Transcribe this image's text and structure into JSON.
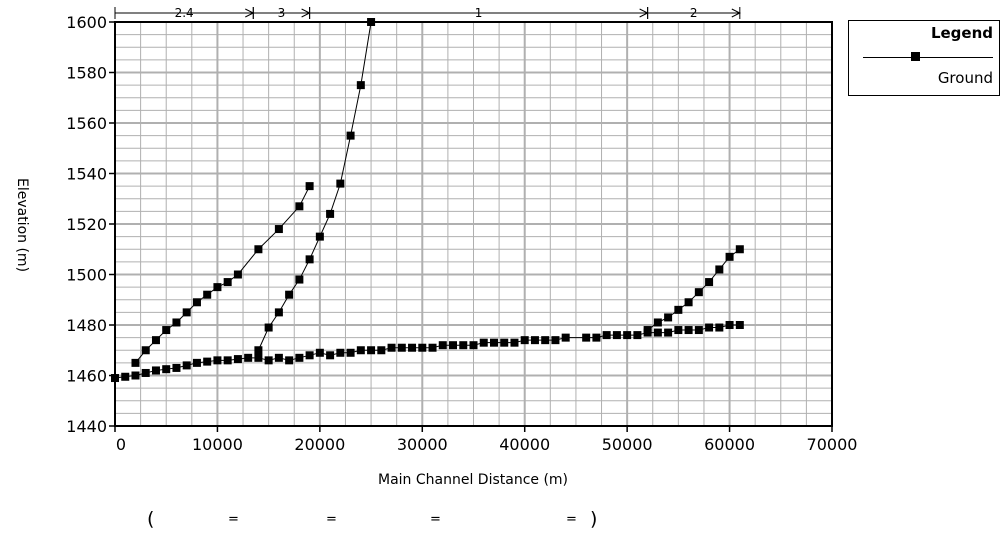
{
  "chart_data": {
    "type": "line",
    "title": "",
    "xlabel": "Main Channel Distance (m)",
    "ylabel": "Elevation (m)",
    "xlim": [
      0,
      70000
    ],
    "ylim": [
      1440,
      1600
    ],
    "x_ticks": [
      "0",
      "10000",
      "20000",
      "30000",
      "40000",
      "50000",
      "60000",
      "70000"
    ],
    "y_ticks": [
      "1440",
      "1460",
      "1480",
      "1500",
      "1520",
      "1540",
      "1560",
      "1580",
      "1600"
    ],
    "grid": true,
    "legend_position": "top-right",
    "series": [
      {
        "name": "Ground",
        "reaches": [
          {
            "x": [
              0,
              1000,
              2000,
              3000,
              4000,
              5000,
              6000,
              7000,
              8000,
              9000,
              10000,
              11000,
              12000,
              13000,
              14000,
              15000,
              16000,
              17000,
              18000,
              19000,
              20000,
              21000,
              22000,
              23000,
              24000,
              25000,
              26000,
              27000,
              28000,
              29000,
              30000,
              31000,
              32000,
              33000,
              34000,
              35000,
              36000,
              37000,
              38000,
              39000,
              40000,
              41000,
              42000,
              43000,
              44000,
              46000,
              47000,
              48000,
              49000,
              50000,
              51000,
              52000,
              53000,
              54000,
              55000,
              56000,
              57000,
              58000,
              59000,
              60000,
              61000
            ],
            "y": [
              1459,
              1459.5,
              1460,
              1461,
              1462,
              1462.5,
              1463,
              1464,
              1465,
              1465.5,
              1466,
              1466,
              1466.5,
              1467,
              1467,
              1466,
              1467,
              1466,
              1467,
              1468,
              1469,
              1468,
              1469,
              1469,
              1470,
              1470,
              1470,
              1471,
              1471,
              1471,
              1471,
              1471,
              1472,
              1472,
              1472,
              1472,
              1473,
              1473,
              1473,
              1473,
              1474,
              1474,
              1474,
              1474,
              1475,
              1475,
              1475,
              1476,
              1476,
              1476,
              1476,
              1477,
              1477,
              1477,
              1478,
              1478,
              1478,
              1479,
              1479,
              1480,
              1480
            ]
          },
          {
            "x": [
              2000,
              3000,
              4000,
              5000,
              6000,
              7000,
              8000,
              9000,
              10000,
              11000,
              12000,
              14000,
              16000,
              18000,
              19000
            ],
            "y": [
              1465,
              1470,
              1474,
              1478,
              1481,
              1485,
              1489,
              1492,
              1495,
              1497,
              1500,
              1510,
              1518,
              1527,
              1535
            ]
          },
          {
            "x": [
              14000,
              15000,
              16000,
              17000,
              18000,
              19000,
              20000,
              21000,
              22000,
              23000,
              24000,
              25000
            ],
            "y": [
              1470,
              1479,
              1485,
              1492,
              1498,
              1506,
              1515,
              1524,
              1536,
              1555,
              1575,
              1600
            ]
          },
          {
            "x": [
              52000,
              53000,
              54000,
              55000,
              56000,
              57000,
              58000,
              59000,
              60000,
              61000
            ],
            "y": [
              1478,
              1481,
              1483,
              1486,
              1489,
              1493,
              1497,
              1502,
              1507,
              1510
            ]
          }
        ]
      }
    ],
    "reach_labels": [
      "2.4",
      "3",
      "1",
      "2"
    ],
    "reach_bounds": [
      [
        0,
        13500
      ],
      [
        13500,
        19000
      ],
      [
        19000,
        52000
      ],
      [
        52000,
        61000
      ]
    ]
  },
  "legend": {
    "title": "Legend",
    "series_label": "Ground"
  },
  "footer": {
    "open_paren": "(",
    "eq1": "=",
    "eq2": "=",
    "eq3": "=",
    "eq4": "=",
    "close_paren": ")"
  },
  "colors": {
    "grid": "#b0b0b0",
    "series": "#000000"
  }
}
